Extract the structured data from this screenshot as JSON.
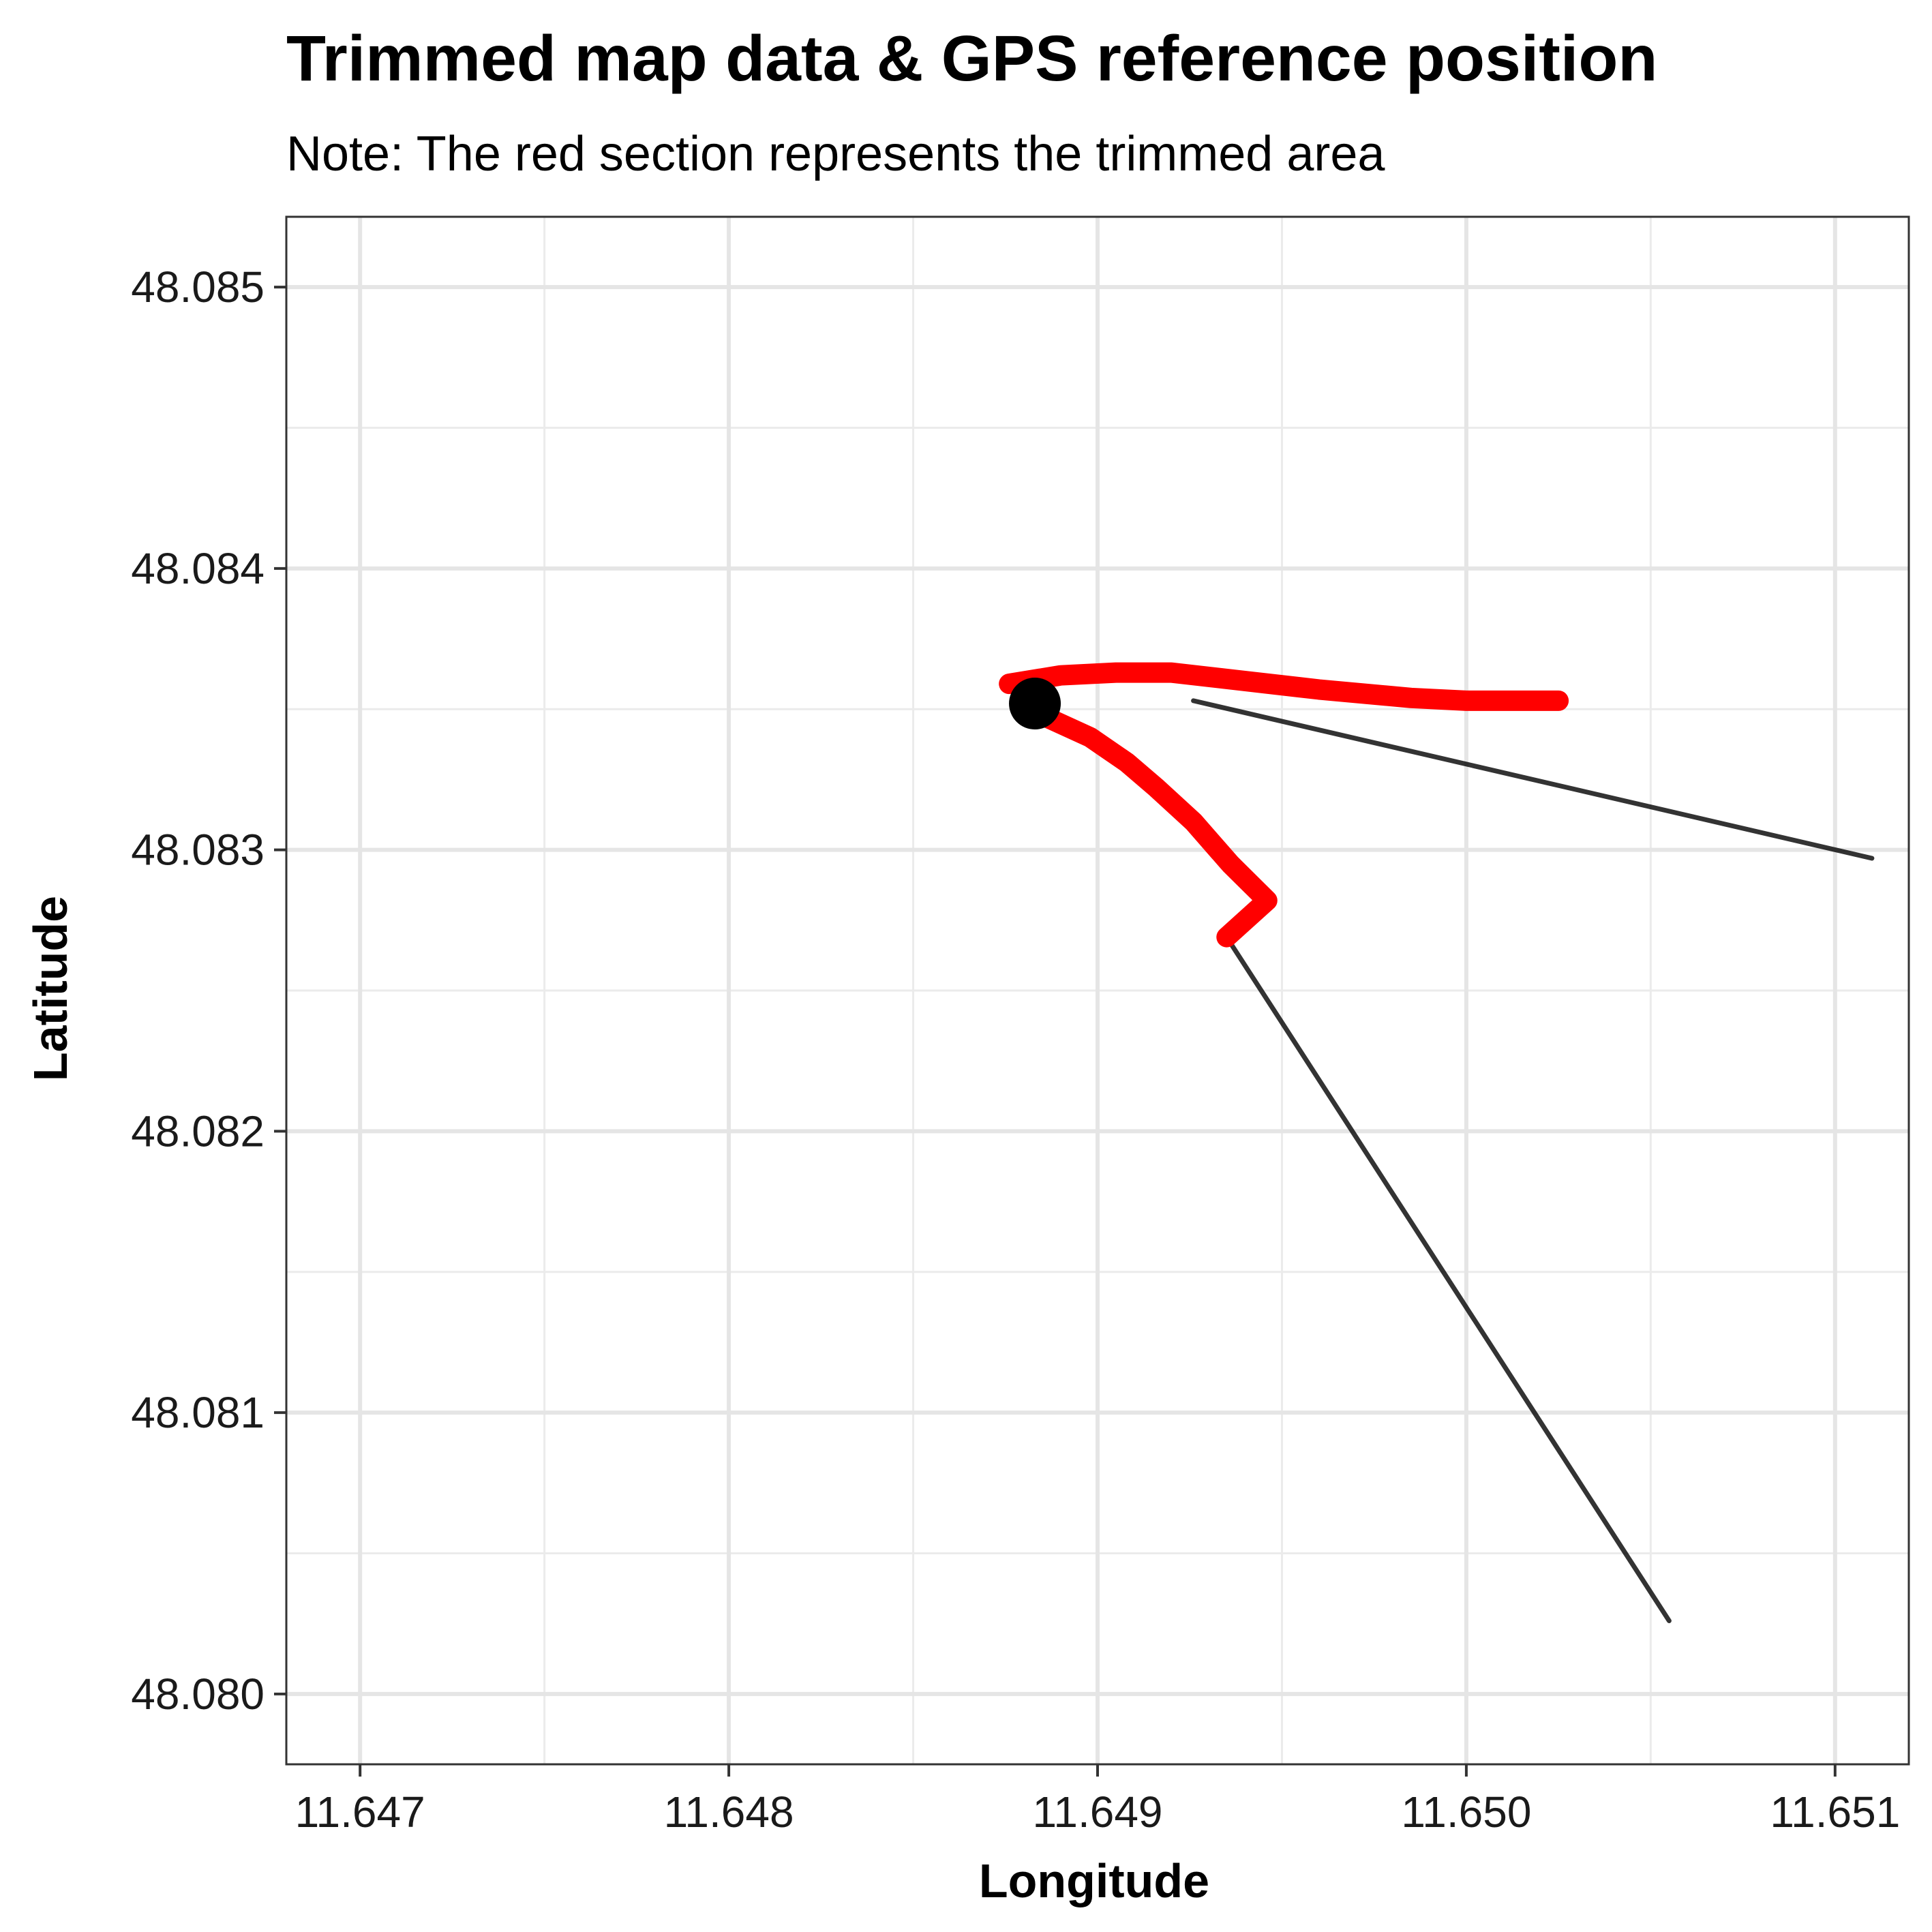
{
  "chart_data": {
    "type": "line",
    "title": "Trimmed map data & GPS reference position",
    "subtitle": "Note: The red section represents the trimmed area",
    "xlabel": "Longitude",
    "ylabel": "Latitude",
    "xlim": [
      11.6468,
      11.6512
    ],
    "ylim": [
      48.07975,
      48.08525
    ],
    "x_ticks": [
      "11.647",
      "11.648",
      "11.649",
      "11.650",
      "11.651"
    ],
    "x_tick_values": [
      11.647,
      11.648,
      11.649,
      11.65,
      11.651
    ],
    "y_ticks": [
      "48.080",
      "48.081",
      "48.082",
      "48.083",
      "48.084",
      "48.085"
    ],
    "y_tick_values": [
      48.08,
      48.081,
      48.082,
      48.083,
      48.084,
      48.085
    ],
    "grid": true,
    "series": [
      {
        "color": "#000000",
        "style": "thin",
        "points": [
          [
            11.64926,
            48.08353
          ],
          [
            11.6511,
            48.08297
          ]
        ]
      },
      {
        "color": "#000000",
        "style": "thin",
        "points": [
          [
            11.64935,
            48.08269
          ],
          [
            11.65055,
            48.08026
          ]
        ]
      },
      {
        "color": "#ff0000",
        "style": "thick",
        "points": [
          [
            11.64876,
            48.08359
          ],
          [
            11.6489,
            48.08362
          ],
          [
            11.64905,
            48.08363
          ],
          [
            11.6492,
            48.08363
          ],
          [
            11.6494,
            48.0836
          ],
          [
            11.6496,
            48.08357
          ],
          [
            11.64985,
            48.08354
          ],
          [
            11.65,
            48.08353
          ],
          [
            11.65025,
            48.08353
          ]
        ]
      },
      {
        "color": "#ff0000",
        "style": "thick",
        "points": [
          [
            11.64883,
            48.08349
          ],
          [
            11.64898,
            48.0834
          ],
          [
            11.64908,
            48.08331
          ],
          [
            11.64916,
            48.08322
          ],
          [
            11.64926,
            48.0831
          ],
          [
            11.64936,
            48.08295
          ],
          [
            11.64946,
            48.08282
          ],
          [
            11.64935,
            48.08269
          ]
        ]
      }
    ],
    "reference_point": {
      "lon": 11.64883,
      "lat": 48.08352,
      "color": "#000000"
    }
  }
}
